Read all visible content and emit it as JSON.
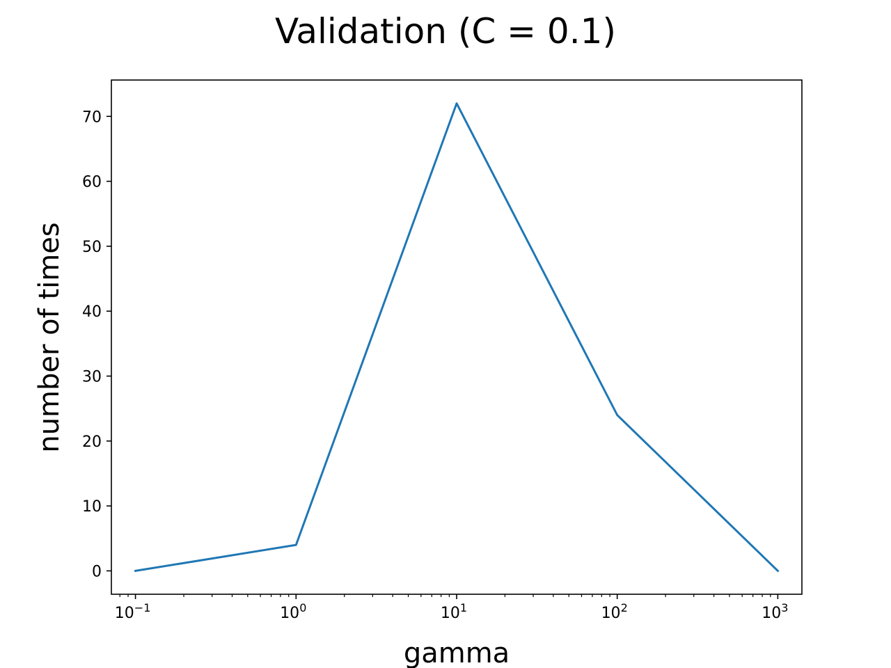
{
  "chart_data": {
    "type": "line",
    "title": "Validation (C = 0.1)",
    "xlabel": "gamma",
    "ylabel": "number of times",
    "x_scale": "log",
    "x": [
      0.1,
      1,
      10,
      100,
      1000
    ],
    "series": [
      {
        "values": [
          0,
          4,
          72,
          24,
          0
        ],
        "color": "#1f77b4"
      }
    ],
    "x_ticks": [
      {
        "base": "10",
        "exp": "−1"
      },
      {
        "base": "10",
        "exp": "0"
      },
      {
        "base": "10",
        "exp": "1"
      },
      {
        "base": "10",
        "exp": "2"
      },
      {
        "base": "10",
        "exp": "3"
      }
    ],
    "y_ticks": [
      "0",
      "10",
      "20",
      "30",
      "40",
      "50",
      "60",
      "70"
    ],
    "xlim": [
      0.0708,
      1413
    ],
    "ylim": [
      -3.6,
      75.6
    ],
    "grid": false,
    "legend": false
  }
}
